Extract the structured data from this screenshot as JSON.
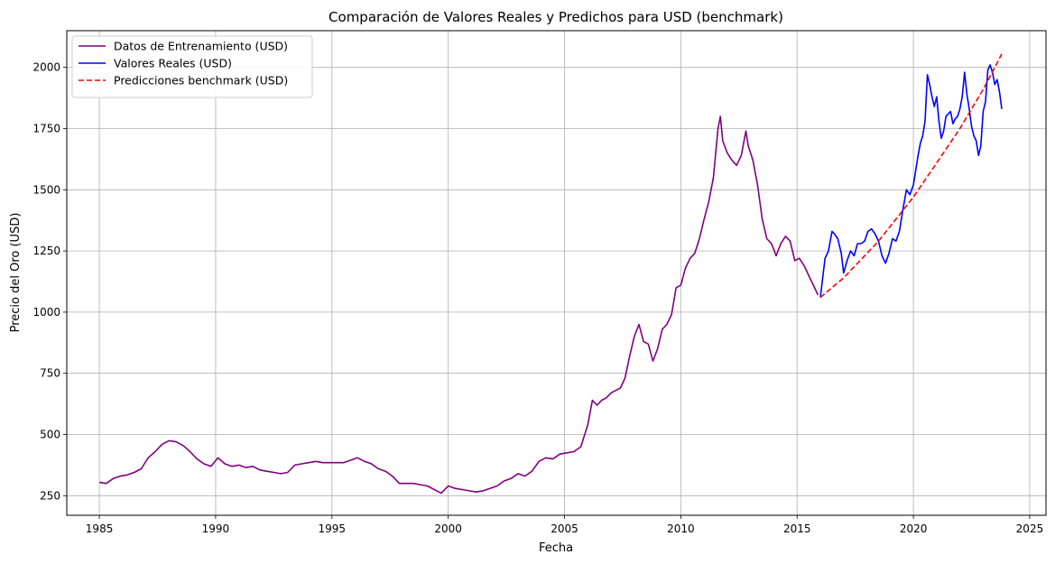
{
  "chart_data": {
    "type": "line",
    "title": "Comparación de Valores Reales y Predichos para USD (benchmark)",
    "xlabel": "Fecha",
    "ylabel": "Precio del Oro (USD)",
    "xlim": [
      1983.6,
      2025.7
    ],
    "ylim": [
      170,
      2150
    ],
    "xticks": [
      1985,
      1990,
      1995,
      2000,
      2005,
      2010,
      2015,
      2020,
      2025
    ],
    "yticks": [
      250,
      500,
      750,
      1000,
      1250,
      1500,
      1750,
      2000
    ],
    "grid": true,
    "legend_position": "upper-left",
    "series": [
      {
        "name": "Datos de Entrenamiento (USD)",
        "color": "#800080",
        "style": "solid",
        "x": [
          1985.0,
          1985.3,
          1985.6,
          1985.9,
          1986.2,
          1986.5,
          1986.8,
          1987.1,
          1987.4,
          1987.7,
          1988.0,
          1988.3,
          1988.6,
          1988.9,
          1989.2,
          1989.5,
          1989.8,
          1990.1,
          1990.4,
          1990.7,
          1991.0,
          1991.3,
          1991.6,
          1991.9,
          1992.2,
          1992.5,
          1992.8,
          1993.1,
          1993.4,
          1993.7,
          1994.0,
          1994.3,
          1994.6,
          1994.9,
          1995.2,
          1995.5,
          1995.8,
          1996.1,
          1996.4,
          1996.7,
          1997.0,
          1997.3,
          1997.6,
          1997.9,
          1998.2,
          1998.5,
          1998.8,
          1999.1,
          1999.4,
          1999.7,
          2000.0,
          2000.3,
          2000.6,
          2000.9,
          2001.2,
          2001.5,
          2001.8,
          2002.1,
          2002.4,
          2002.7,
          2003.0,
          2003.3,
          2003.6,
          2003.9,
          2004.2,
          2004.5,
          2004.8,
          2005.1,
          2005.4,
          2005.7,
          2006.0,
          2006.2,
          2006.4,
          2006.6,
          2006.8,
          2007.0,
          2007.2,
          2007.4,
          2007.6,
          2007.8,
          2008.0,
          2008.2,
          2008.4,
          2008.6,
          2008.8,
          2009.0,
          2009.2,
          2009.4,
          2009.6,
          2009.8,
          2010.0,
          2010.2,
          2010.4,
          2010.6,
          2010.8,
          2011.0,
          2011.2,
          2011.4,
          2011.6,
          2011.7,
          2011.8,
          2012.0,
          2012.2,
          2012.4,
          2012.6,
          2012.8,
          2012.9,
          2013.1,
          2013.3,
          2013.5,
          2013.7,
          2013.9,
          2014.1,
          2014.3,
          2014.5,
          2014.7,
          2014.9,
          2015.1,
          2015.3,
          2015.5,
          2015.7,
          2015.9
        ],
        "y": [
          305,
          300,
          320,
          330,
          335,
          345,
          360,
          405,
          430,
          460,
          475,
          470,
          455,
          430,
          400,
          380,
          370,
          405,
          380,
          370,
          375,
          365,
          370,
          355,
          350,
          345,
          340,
          345,
          375,
          380,
          385,
          390,
          385,
          385,
          385,
          385,
          395,
          405,
          390,
          380,
          360,
          350,
          330,
          300,
          300,
          300,
          295,
          290,
          275,
          260,
          290,
          280,
          275,
          270,
          265,
          270,
          280,
          290,
          310,
          320,
          340,
          330,
          350,
          390,
          405,
          400,
          420,
          425,
          430,
          450,
          540,
          640,
          620,
          640,
          650,
          670,
          680,
          690,
          730,
          820,
          900,
          950,
          880,
          870,
          800,
          850,
          930,
          950,
          990,
          1100,
          1110,
          1180,
          1220,
          1240,
          1300,
          1380,
          1450,
          1550,
          1750,
          1800,
          1700,
          1650,
          1620,
          1600,
          1640,
          1740,
          1680,
          1620,
          1520,
          1380,
          1300,
          1280,
          1230,
          1280,
          1310,
          1290,
          1210,
          1220,
          1190,
          1150,
          1110,
          1070
        ]
      },
      {
        "name": "Valores Reales (USD)",
        "color": "#0000ff",
        "style": "solid",
        "x": [
          2016.0,
          2016.1,
          2016.2,
          2016.35,
          2016.5,
          2016.6,
          2016.75,
          2016.9,
          2017.0,
          2017.15,
          2017.3,
          2017.45,
          2017.6,
          2017.75,
          2017.9,
          2018.05,
          2018.2,
          2018.35,
          2018.5,
          2018.65,
          2018.8,
          2018.95,
          2019.1,
          2019.25,
          2019.4,
          2019.55,
          2019.7,
          2019.85,
          2020.0,
          2020.1,
          2020.2,
          2020.3,
          2020.4,
          2020.5,
          2020.6,
          2020.7,
          2020.8,
          2020.9,
          2021.0,
          2021.1,
          2021.2,
          2021.3,
          2021.4,
          2021.5,
          2021.6,
          2021.7,
          2021.8,
          2021.9,
          2022.0,
          2022.1,
          2022.2,
          2022.3,
          2022.4,
          2022.5,
          2022.6,
          2022.7,
          2022.8,
          2022.9,
          2023.0,
          2023.1,
          2023.2,
          2023.3,
          2023.4,
          2023.5,
          2023.6,
          2023.7,
          2023.8
        ],
        "y": [
          1060,
          1140,
          1220,
          1250,
          1330,
          1320,
          1300,
          1240,
          1160,
          1210,
          1250,
          1230,
          1280,
          1280,
          1290,
          1330,
          1340,
          1320,
          1290,
          1230,
          1200,
          1240,
          1300,
          1290,
          1330,
          1420,
          1500,
          1480,
          1520,
          1580,
          1640,
          1690,
          1720,
          1780,
          1970,
          1930,
          1880,
          1840,
          1880,
          1780,
          1710,
          1740,
          1800,
          1810,
          1820,
          1770,
          1790,
          1800,
          1830,
          1880,
          1980,
          1890,
          1830,
          1760,
          1720,
          1700,
          1640,
          1680,
          1820,
          1860,
          1990,
          2010,
          1980,
          1930,
          1950,
          1900,
          1830
        ]
      },
      {
        "name": "Predicciones benchmark (USD)",
        "color": "#ff0000",
        "style": "dashed",
        "x": [
          2016.0,
          2016.5,
          2017.0,
          2017.5,
          2018.0,
          2018.5,
          2019.0,
          2019.5,
          2020.0,
          2020.5,
          2021.0,
          2021.5,
          2022.0,
          2022.5,
          2023.0,
          2023.5,
          2023.8
        ],
        "y": [
          1060,
          1100,
          1140,
          1190,
          1240,
          1290,
          1350,
          1410,
          1470,
          1540,
          1610,
          1680,
          1750,
          1830,
          1910,
          2000,
          2055
        ]
      }
    ]
  }
}
